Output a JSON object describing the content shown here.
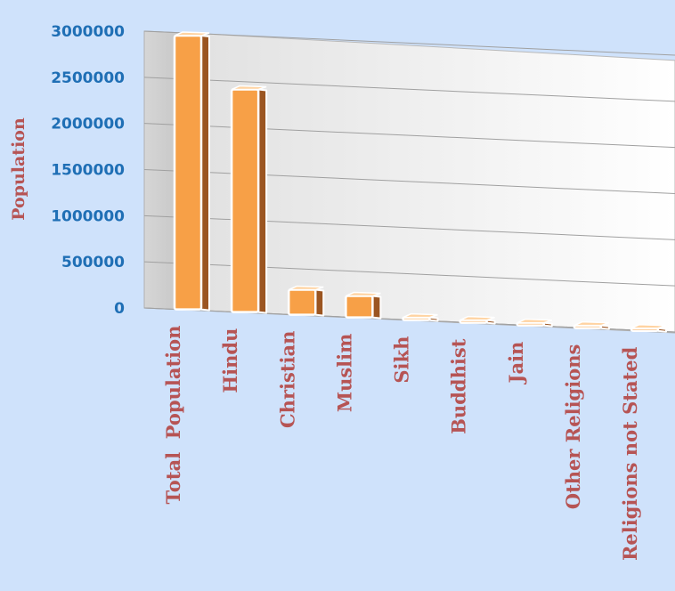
{
  "chart_data": {
    "type": "bar",
    "categories": [
      "Total  Population",
      "Hindu",
      "Christian",
      "Muslim",
      "Sikh",
      "Buddhist",
      "Jain",
      "Other Religions",
      "Religions not Stated"
    ],
    "values": [
      2966889,
      2412583,
      270811,
      232360,
      1150,
      1043,
      780,
      2150,
      2650
    ],
    "ylabel": "Population",
    "ylim": [
      0,
      3000000
    ],
    "yticks": [
      0,
      500000,
      1000000,
      1500000,
      2000000,
      2500000,
      3000000
    ],
    "grid": true,
    "legend": "none",
    "colors": {
      "background": "#cfe2fb",
      "bar_front": "#f7a047",
      "bar_side": "#9b5521",
      "bar_outline": "#ffffff",
      "ytick_text": "#1f6fb5",
      "xtick_text": "#b65454",
      "ylabel_text": "#b65454",
      "wall": "#ffffff",
      "grid": "#a0a0a0"
    }
  }
}
